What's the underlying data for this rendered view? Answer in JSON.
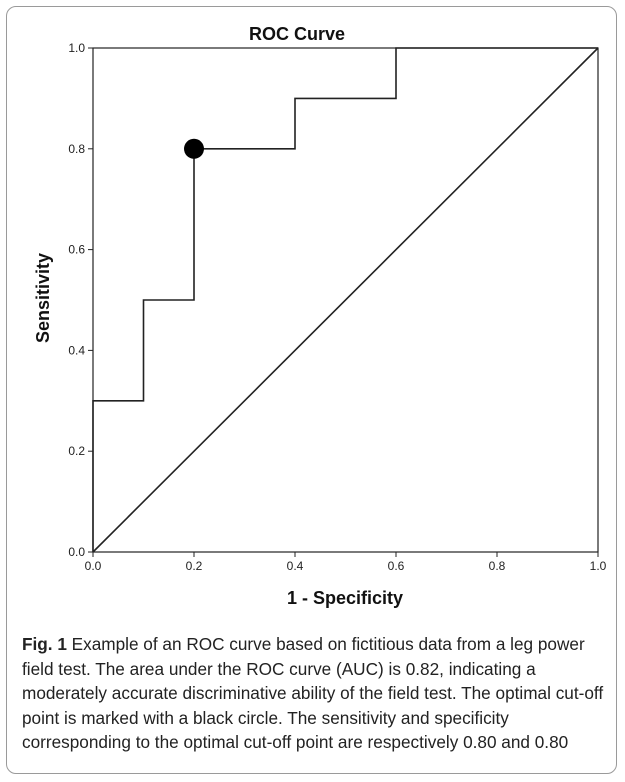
{
  "chart_data": {
    "type": "line",
    "title": "ROC Curve",
    "xlabel": "1 - Specificity",
    "ylabel": "Sensitivity",
    "xlim": [
      0.0,
      1.0
    ],
    "ylim": [
      0.0,
      1.0
    ],
    "x_ticks": [
      "0.0",
      "0.2",
      "0.4",
      "0.6",
      "0.8",
      "1.0"
    ],
    "y_ticks": [
      "0.0",
      "0.2",
      "0.4",
      "0.6",
      "0.8",
      "1.0"
    ],
    "grid": false,
    "legend": "none",
    "series": [
      {
        "points": [
          [
            0.0,
            0.0
          ],
          [
            0.0,
            0.3
          ],
          [
            0.1,
            0.3
          ],
          [
            0.1,
            0.5
          ],
          [
            0.2,
            0.5
          ],
          [
            0.2,
            0.8
          ],
          [
            0.4,
            0.8
          ],
          [
            0.4,
            0.9
          ],
          [
            0.6,
            0.9
          ],
          [
            0.6,
            1.0
          ],
          [
            1.0,
            1.0
          ]
        ]
      },
      {
        "points": [
          [
            0.0,
            0.0
          ],
          [
            1.0,
            1.0
          ]
        ]
      }
    ],
    "marker": {
      "x": 0.2,
      "y": 0.8,
      "color": "#000000"
    }
  },
  "caption": {
    "label": "Fig. 1",
    "text": " Example of an ROC curve based on fictitious data from a leg power field test. The area under the ROC curve (AUC) is 0.82, indicating a moderately accurate discriminative ability of the field test. The optimal cut-off point is marked with a black circle. The sensitivity and specificity corresponding to the optimal cut-off point are respectively 0.80 and 0.80"
  }
}
